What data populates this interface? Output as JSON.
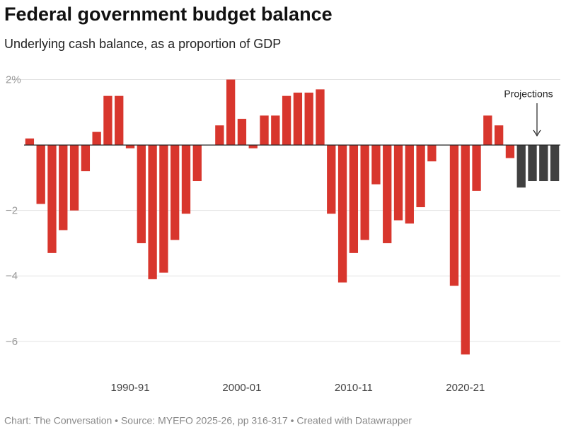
{
  "chart_data": {
    "type": "bar",
    "title": "Federal government budget balance",
    "subtitle": "Underlying cash balance, as a proportion of GDP",
    "source": "Chart: The Conversation • Source: MYEFO 2025-26, pp 316-317 • Created with Datawrapper",
    "annotation": "Projections",
    "categories": [
      null,
      null,
      null,
      null,
      null,
      null,
      null,
      null,
      null,
      "1990-91",
      null,
      null,
      null,
      null,
      null,
      null,
      null,
      null,
      null,
      "2000-01",
      null,
      null,
      null,
      null,
      null,
      null,
      null,
      null,
      null,
      "2010-11",
      null,
      null,
      null,
      null,
      null,
      null,
      null,
      null,
      null,
      "2020-21",
      null,
      null,
      null,
      null,
      null,
      null,
      null,
      null
    ],
    "values": [
      0.2,
      -1.8,
      -3.3,
      -2.6,
      -2.0,
      -0.8,
      0.4,
      1.5,
      1.5,
      -0.1,
      -3.0,
      -4.1,
      -3.9,
      -2.9,
      -2.1,
      -1.1,
      0,
      0.6,
      2.0,
      0.8,
      -0.1,
      0.9,
      0.9,
      1.5,
      1.6,
      1.6,
      1.7,
      -2.1,
      -4.2,
      -3.3,
      -2.9,
      -1.2,
      -3.0,
      -2.3,
      -2.4,
      -1.9,
      -0.5,
      0,
      -4.3,
      -6.4,
      -1.4,
      0.9,
      0.6,
      -0.4,
      -1.3,
      -1.1,
      -1.1,
      -1.1
    ],
    "colors": [
      "#d8362d",
      "#d8362d",
      "#d8362d",
      "#d8362d",
      "#d8362d",
      "#d8362d",
      "#d8362d",
      "#d8362d",
      "#d8362d",
      "#d8362d",
      "#d8362d",
      "#d8362d",
      "#d8362d",
      "#d8362d",
      "#d8362d",
      "#d8362d",
      "#d8362d",
      "#d8362d",
      "#d8362d",
      "#d8362d",
      "#d8362d",
      "#d8362d",
      "#d8362d",
      "#d8362d",
      "#d8362d",
      "#d8362d",
      "#d8362d",
      "#d8362d",
      "#d8362d",
      "#d8362d",
      "#d8362d",
      "#d8362d",
      "#d8362d",
      "#d8362d",
      "#d8362d",
      "#d8362d",
      "#d8362d",
      "#d8362d",
      "#d8362d",
      "#d8362d",
      "#d8362d",
      "#d8362d",
      "#d8362d",
      "#d8362d",
      "#404040",
      "#404040",
      "#404040",
      "#404040"
    ],
    "ylim": [
      -6.5,
      2
    ],
    "yticks": [
      {
        "value": 2,
        "label": "2%"
      },
      {
        "value": -2,
        "label": "−2"
      },
      {
        "value": -4,
        "label": "−4"
      },
      {
        "value": -6,
        "label": "−6"
      }
    ],
    "grid": true
  }
}
